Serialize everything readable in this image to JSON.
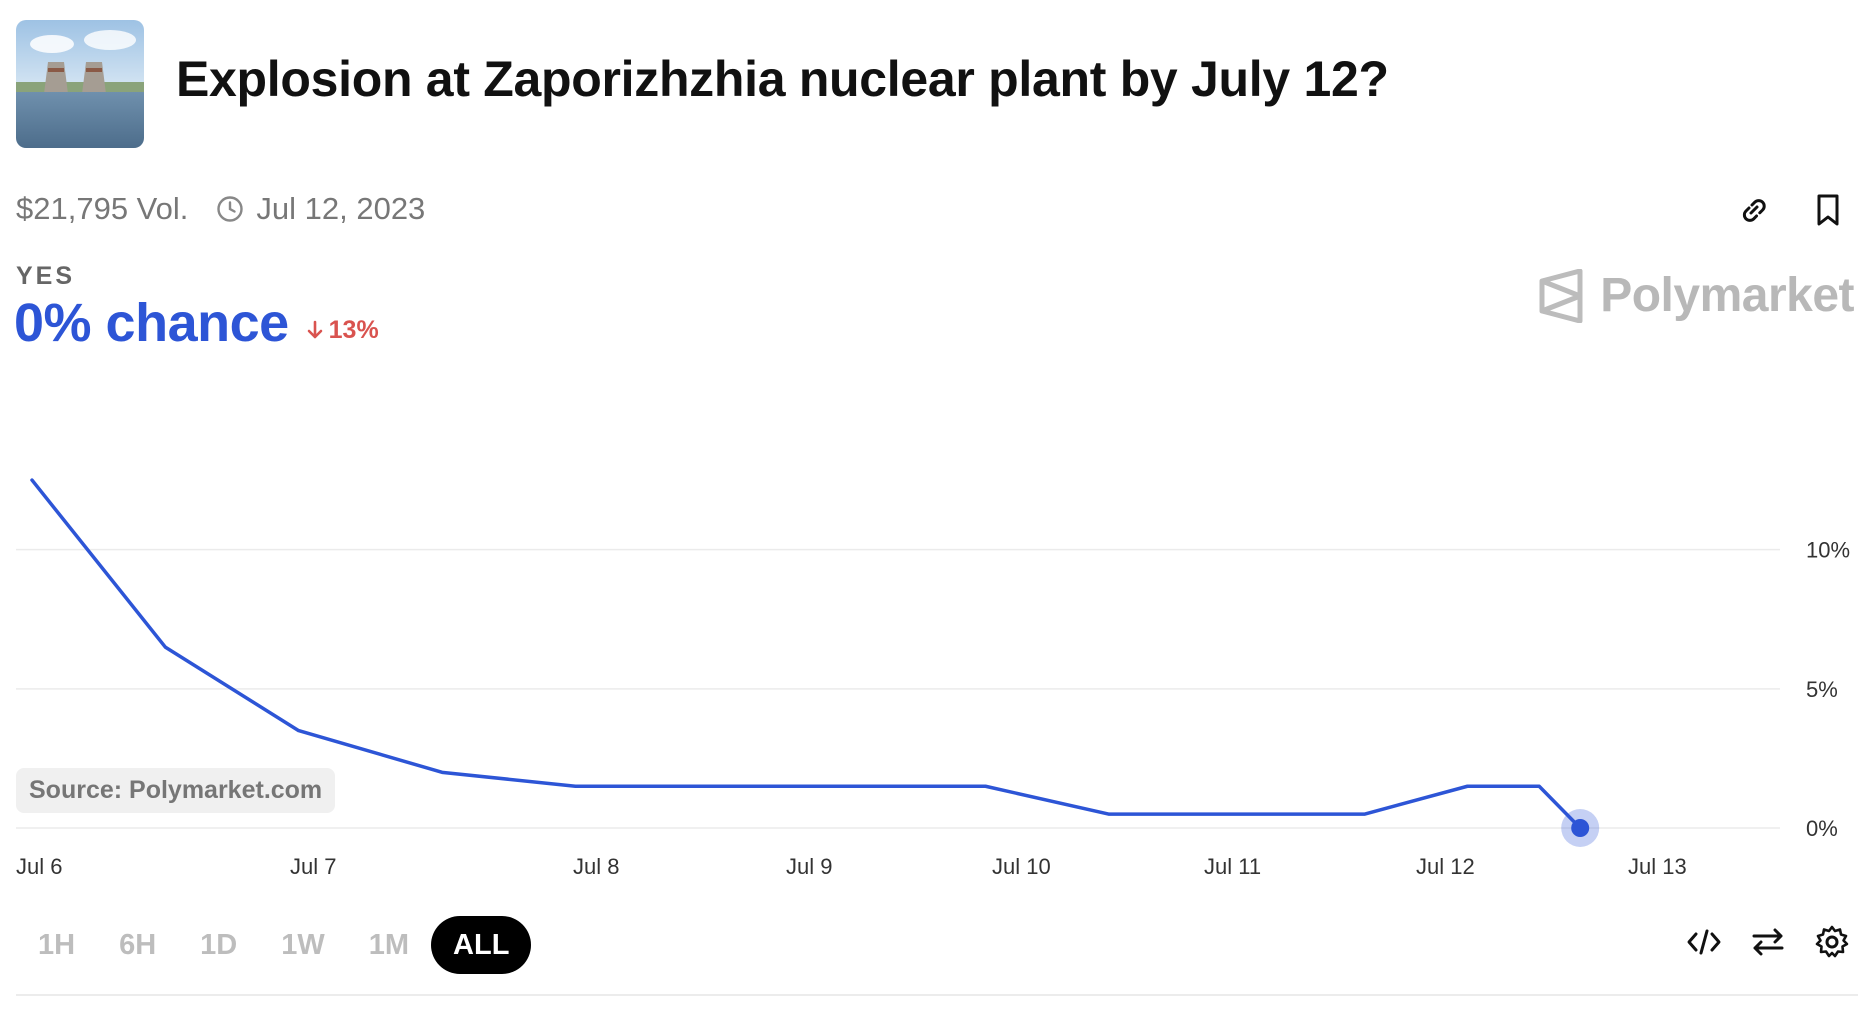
{
  "header": {
    "title": "Explosion at Zaporizhzhia nuclear plant by July 12?",
    "volume": "$21,795 Vol.",
    "date": "Jul 12, 2023"
  },
  "outcome": {
    "label": "YES",
    "chance": "0% chance",
    "change": "13%",
    "change_direction": "down"
  },
  "brand": {
    "name": "Polymarket"
  },
  "source_label": "Source: Polymarket.com",
  "time_ranges": [
    {
      "label": "1H",
      "active": false
    },
    {
      "label": "6H",
      "active": false
    },
    {
      "label": "1D",
      "active": false
    },
    {
      "label": "1W",
      "active": false
    },
    {
      "label": "1M",
      "active": false
    },
    {
      "label": "ALL",
      "active": true
    }
  ],
  "icons": {
    "top": [
      "link-icon",
      "bookmark-icon"
    ],
    "bottom": [
      "embed-code-icon",
      "swap-icon",
      "settings-gear-icon"
    ]
  },
  "colors": {
    "accent": "#2d55d6",
    "negative": "#d9534f",
    "grid": "#ebebeb"
  },
  "chart_data": {
    "type": "line",
    "x_tick_labels": [
      "Jul 6",
      "Jul 7",
      "Jul 8",
      "Jul 9",
      "Jul 10",
      "Jul 11",
      "Jul 12",
      "Jul 13"
    ],
    "y_tick_labels": [
      "10%",
      "5%",
      "0%"
    ],
    "y_ticks": [
      10,
      5,
      0
    ],
    "ylim": [
      0,
      13
    ],
    "xlim": [
      0,
      8.5
    ],
    "grid": true,
    "series": [
      {
        "x": [
          0,
          0.65,
          1.3,
          2.0,
          2.65,
          3.3,
          4.0,
          4.65,
          5.25,
          5.85,
          6.5,
          7.0,
          7.35,
          7.55
        ],
        "y": [
          12.5,
          6.5,
          3.5,
          2.0,
          1.5,
          1.5,
          1.5,
          1.5,
          0.5,
          0.5,
          0.5,
          1.5,
          1.5,
          0.0
        ]
      }
    ]
  }
}
